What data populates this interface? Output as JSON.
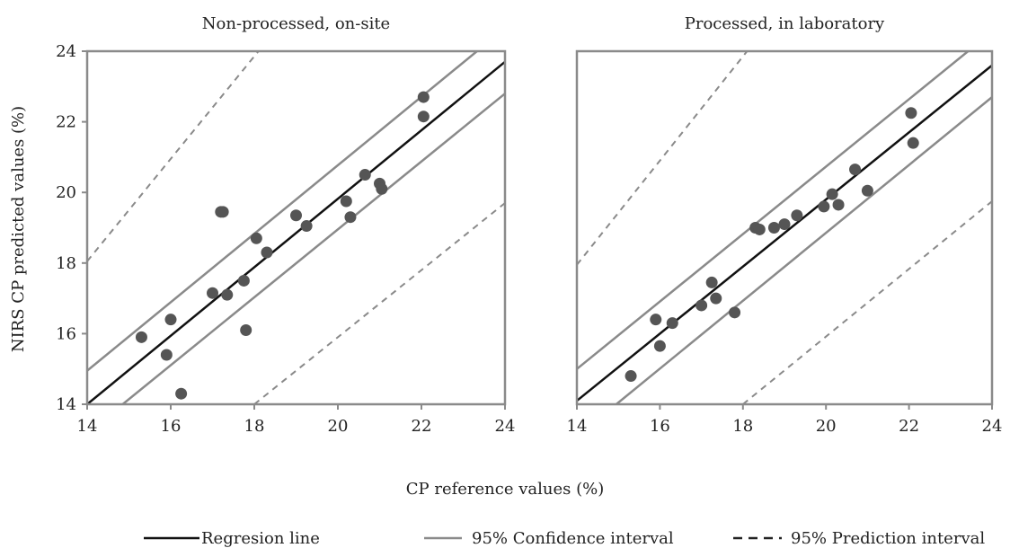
{
  "chart_data": [
    {
      "type": "scatter",
      "title": "Non-processed, on-site",
      "xlim": [
        14,
        24
      ],
      "ylim": [
        14,
        24
      ],
      "xticks": [
        14,
        16,
        18,
        20,
        22,
        24
      ],
      "yticks": [
        14,
        16,
        18,
        20,
        22,
        24
      ],
      "grid": false,
      "lines": {
        "regression": [
          [
            14,
            14.0
          ],
          [
            24,
            23.7
          ]
        ],
        "ci_upper": [
          [
            14,
            14.95
          ],
          [
            24,
            24.65
          ]
        ],
        "ci_lower": [
          [
            14.85,
            14.0
          ],
          [
            24,
            22.8
          ]
        ],
        "pi_upper": [
          [
            14,
            18.05
          ],
          [
            18.1,
            24
          ]
        ],
        "pi_lower": [
          [
            18.0,
            14.0
          ],
          [
            24,
            19.7
          ]
        ]
      },
      "points": [
        {
          "x": 15.3,
          "y": 15.9
        },
        {
          "x": 15.9,
          "y": 15.4
        },
        {
          "x": 16.0,
          "y": 16.4
        },
        {
          "x": 16.25,
          "y": 14.3
        },
        {
          "x": 17.0,
          "y": 17.15
        },
        {
          "x": 17.2,
          "y": 19.45
        },
        {
          "x": 17.25,
          "y": 19.45
        },
        {
          "x": 17.35,
          "y": 17.1
        },
        {
          "x": 17.75,
          "y": 17.5
        },
        {
          "x": 17.8,
          "y": 16.1
        },
        {
          "x": 18.05,
          "y": 18.7
        },
        {
          "x": 18.3,
          "y": 18.3
        },
        {
          "x": 19.0,
          "y": 19.35
        },
        {
          "x": 19.25,
          "y": 19.05
        },
        {
          "x": 20.2,
          "y": 19.75
        },
        {
          "x": 20.3,
          "y": 19.3
        },
        {
          "x": 20.65,
          "y": 20.5
        },
        {
          "x": 21.0,
          "y": 20.25
        },
        {
          "x": 21.05,
          "y": 20.1
        },
        {
          "x": 22.05,
          "y": 22.7
        },
        {
          "x": 22.05,
          "y": 22.15
        }
      ]
    },
    {
      "type": "scatter",
      "title": "Processed, in laboratory",
      "xlim": [
        14,
        24
      ],
      "ylim": [
        14,
        24
      ],
      "xticks": [
        14,
        16,
        18,
        20,
        22,
        24
      ],
      "yticks": [],
      "grid": false,
      "lines": {
        "regression": [
          [
            14,
            14.1
          ],
          [
            24,
            23.6
          ]
        ],
        "ci_upper": [
          [
            14,
            15.0
          ],
          [
            24,
            24.55
          ]
        ],
        "ci_lower": [
          [
            14.95,
            14.0
          ],
          [
            24,
            22.7
          ]
        ],
        "pi_upper": [
          [
            14,
            17.95
          ],
          [
            18.1,
            24
          ]
        ],
        "pi_lower": [
          [
            18.0,
            14.0
          ],
          [
            24,
            19.75
          ]
        ]
      },
      "points": [
        {
          "x": 15.3,
          "y": 14.8
        },
        {
          "x": 15.9,
          "y": 16.4
        },
        {
          "x": 16.0,
          "y": 15.65
        },
        {
          "x": 16.3,
          "y": 16.3
        },
        {
          "x": 17.0,
          "y": 16.8
        },
        {
          "x": 17.25,
          "y": 17.45
        },
        {
          "x": 17.35,
          "y": 17.0
        },
        {
          "x": 17.8,
          "y": 16.6
        },
        {
          "x": 18.3,
          "y": 19.0
        },
        {
          "x": 18.4,
          "y": 18.95
        },
        {
          "x": 18.75,
          "y": 19.0
        },
        {
          "x": 19.0,
          "y": 19.1
        },
        {
          "x": 19.3,
          "y": 19.35
        },
        {
          "x": 19.95,
          "y": 19.6
        },
        {
          "x": 20.15,
          "y": 19.95
        },
        {
          "x": 20.3,
          "y": 19.65
        },
        {
          "x": 20.7,
          "y": 20.65
        },
        {
          "x": 21.0,
          "y": 20.05
        },
        {
          "x": 22.05,
          "y": 22.25
        },
        {
          "x": 22.1,
          "y": 21.4
        }
      ]
    }
  ],
  "axes": {
    "ylabel": "NIRS CP predicted values (%)",
    "xlabel": "CP reference values (%)"
  },
  "legend": {
    "placement": "bottom",
    "items": [
      {
        "label": "Regresion line",
        "style": "solid",
        "color": "#111111"
      },
      {
        "label": "95% Confidence interval",
        "style": "solid",
        "color": "#8a8a8a"
      },
      {
        "label": "95% Prediction interval",
        "style": "dashed",
        "color": "#222222"
      }
    ]
  },
  "colors": {
    "frame": "#8a8a8a",
    "regression": "#111111",
    "confidence": "#8a8a8a",
    "prediction": "#8a8a8a",
    "points": "#555555"
  }
}
